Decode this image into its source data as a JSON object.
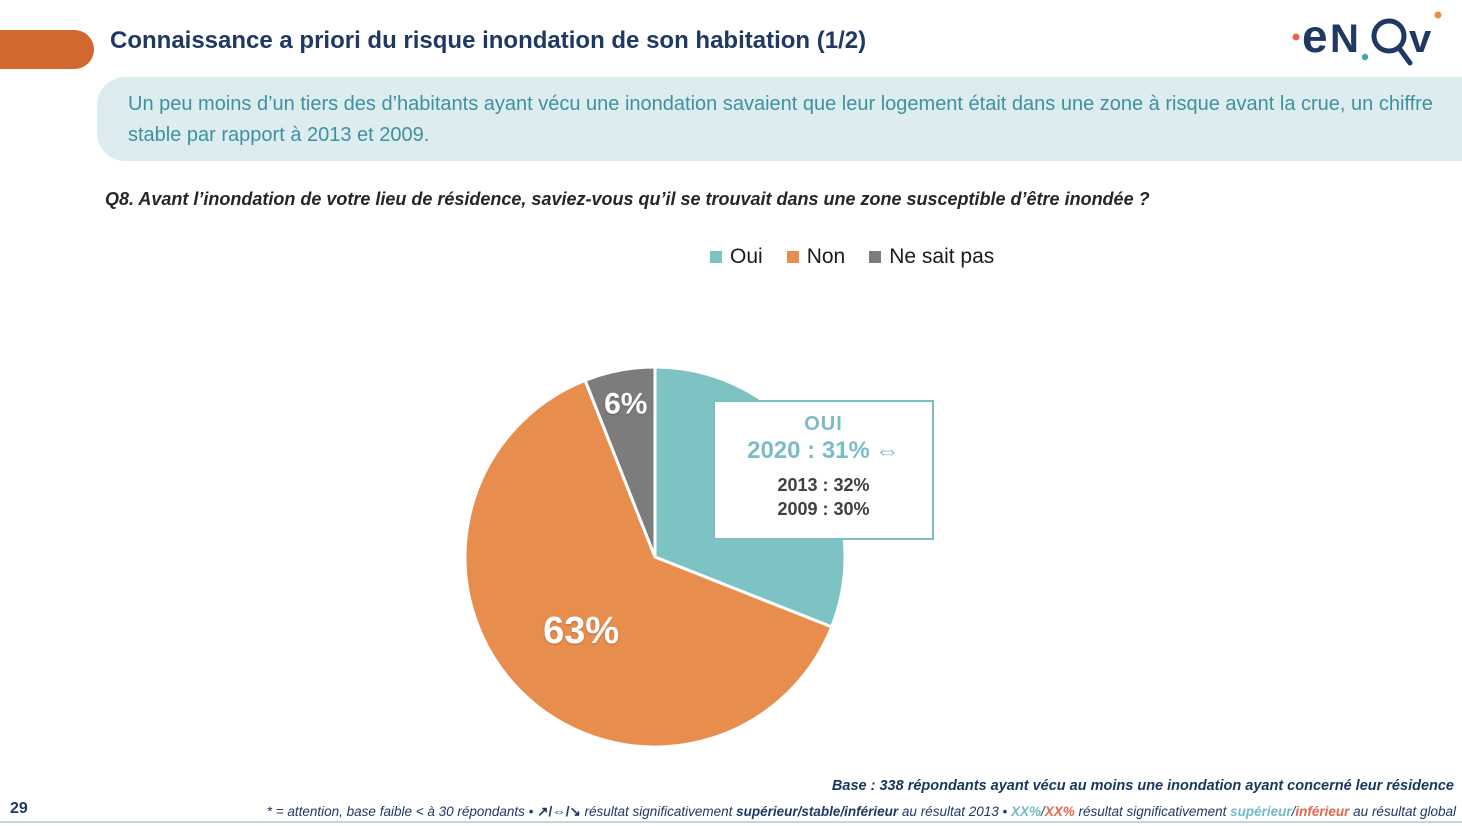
{
  "slide": {
    "title": "Connaissance a priori du risque inondation de son habitation (1/2)",
    "page_number": "29"
  },
  "logo": {
    "alt": "enov",
    "part_e": "e",
    "part_n": "N",
    "part_v": "v"
  },
  "banner": {
    "text": "Un peu moins d’un tiers des d’habitants ayant vécu une inondation savaient que leur logement était dans une zone à risque avant la crue, un chiffre stable par rapport à 2013 et 2009."
  },
  "question": {
    "text": "Q8. Avant l’inondation de votre lieu de résidence, saviez-vous qu’il se trouvait dans une zone susceptible d’être inondée ?"
  },
  "chart_data": {
    "type": "pie",
    "title": "",
    "categories": [
      "Oui",
      "Non",
      "Ne sait pas"
    ],
    "values": [
      31,
      63,
      6
    ],
    "unit": "%",
    "colors": [
      "#7ec3c4",
      "#e78e4e",
      "#7c7c7c"
    ],
    "slice_labels": [
      {
        "text": "",
        "r": 0.6,
        "size": 0
      },
      {
        "text": "63%",
        "r": 0.55,
        "size": 38
      },
      {
        "text": "6%",
        "r": 0.82,
        "size": 30
      }
    ],
    "start_angle_deg": 0,
    "direction": "clockwise",
    "legend_position": "top",
    "annotation": {
      "series": "OUI",
      "2020": "31%",
      "2013": "32%",
      "2009": "30%",
      "trend_vs_2013": "stable"
    }
  },
  "callout": {
    "title": "OUI",
    "current": "2020 : 31%",
    "trend_symbol": "⇔",
    "hist_2013": "2013 : 32%",
    "hist_2009": "2009 : 30%"
  },
  "footnotes": {
    "base": "Base : 338 répondants ayant vécu au moins une inondation ayant concerné leur résidence",
    "note": {
      "prefix": "* = attention, base faible < à 30 répondants • ",
      "arrows": "↗/⇔/↘",
      "mid1": " résultat significativement ",
      "bold_2013": "supérieur/stable/inférieur",
      "mid2": " au résultat 2013 • ",
      "xx_sup": "XX%",
      "slash1": "/",
      "xx_inf": "XX%",
      "mid3": " résultat significativement ",
      "sup": "supérieur",
      "slash2": "/",
      "inf": "inférieur",
      "suffix": " au résultat global"
    }
  },
  "colors": {
    "accent_orange": "#d2672f",
    "navy": "#1f3864",
    "pie_teal": "#7ec3c4",
    "pie_orange": "#e78e4e",
    "pie_gray": "#7c7c7c",
    "callout_teal": "#7cbcc8",
    "banner_bg": "#ddecef",
    "banner_text": "#3e91a0",
    "footer_teal": "#72bac5",
    "footer_orange": "#e2674b"
  }
}
